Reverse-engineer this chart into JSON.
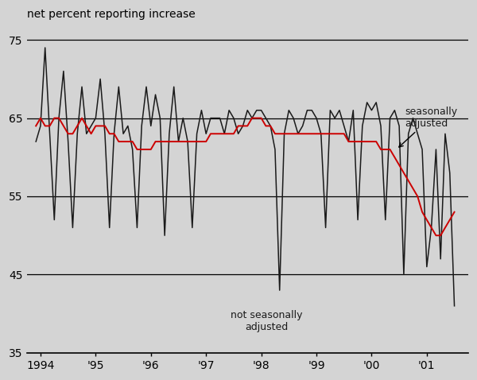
{
  "title": "net percent reporting increase",
  "ylabel_vals": [
    35,
    45,
    55,
    65,
    75
  ],
  "ylim": [
    35,
    77
  ],
  "xlim_start": 1993.75,
  "xlim_end": 2001.75,
  "background_color": "#d4d4d4",
  "hlines": [
    45,
    55,
    65,
    75
  ],
  "xtick_labels": [
    "1994",
    "'95",
    "'96",
    "'97",
    "'98",
    "'99",
    "'00",
    "'01"
  ],
  "xtick_positions": [
    1994,
    1995,
    1996,
    1997,
    1998,
    1999,
    2000,
    2001
  ],
  "sa_color": "#cc0000",
  "nsa_color": "#1a1a1a",
  "sa_annotation_text": "seasonally\nadjusted",
  "nsa_annotation_text": "not seasonally\nadjusted",
  "sa_data": {
    "t": [
      1993.917,
      1994.0,
      1994.083,
      1994.167,
      1994.25,
      1994.333,
      1994.417,
      1994.5,
      1994.583,
      1994.667,
      1994.75,
      1994.833,
      1994.917,
      1995.0,
      1995.083,
      1995.167,
      1995.25,
      1995.333,
      1995.417,
      1995.5,
      1995.583,
      1995.667,
      1995.75,
      1995.833,
      1995.917,
      1996.0,
      1996.083,
      1996.167,
      1996.25,
      1996.333,
      1996.417,
      1996.5,
      1996.583,
      1996.667,
      1996.75,
      1996.833,
      1996.917,
      1997.0,
      1997.083,
      1997.167,
      1997.25,
      1997.333,
      1997.417,
      1997.5,
      1997.583,
      1997.667,
      1997.75,
      1997.833,
      1997.917,
      1998.0,
      1998.083,
      1998.167,
      1998.25,
      1998.333,
      1998.417,
      1998.5,
      1998.583,
      1998.667,
      1998.75,
      1998.833,
      1998.917,
      1999.0,
      1999.083,
      1999.167,
      1999.25,
      1999.333,
      1999.417,
      1999.5,
      1999.583,
      1999.667,
      1999.75,
      1999.833,
      1999.917,
      2000.0,
      2000.083,
      2000.167,
      2000.25,
      2000.333,
      2000.417,
      2000.5,
      2000.583,
      2000.667,
      2000.75,
      2000.833,
      2000.917,
      2001.0,
      2001.083,
      2001.167,
      2001.25,
      2001.333,
      2001.417,
      2001.5
    ],
    "v": [
      64,
      65,
      64,
      64,
      65,
      65,
      64,
      63,
      63,
      64,
      65,
      64,
      63,
      64,
      64,
      64,
      63,
      63,
      62,
      62,
      62,
      62,
      61,
      61,
      61,
      61,
      62,
      62,
      62,
      62,
      62,
      62,
      62,
      62,
      62,
      62,
      62,
      62,
      63,
      63,
      63,
      63,
      63,
      63,
      64,
      64,
      64,
      65,
      65,
      65,
      64,
      64,
      63,
      63,
      63,
      63,
      63,
      63,
      63,
      63,
      63,
      63,
      63,
      63,
      63,
      63,
      63,
      63,
      62,
      62,
      62,
      62,
      62,
      62,
      62,
      61,
      61,
      61,
      60,
      59,
      58,
      57,
      56,
      55,
      53,
      52,
      51,
      50,
      50,
      51,
      52,
      53
    ]
  },
  "nsa_data": {
    "t": [
      1993.917,
      1994.0,
      1994.083,
      1994.167,
      1994.25,
      1994.333,
      1994.417,
      1994.5,
      1994.583,
      1994.667,
      1994.75,
      1994.833,
      1994.917,
      1995.0,
      1995.083,
      1995.167,
      1995.25,
      1995.333,
      1995.417,
      1995.5,
      1995.583,
      1995.667,
      1995.75,
      1995.833,
      1995.917,
      1996.0,
      1996.083,
      1996.167,
      1996.25,
      1996.333,
      1996.417,
      1996.5,
      1996.583,
      1996.667,
      1996.75,
      1996.833,
      1996.917,
      1997.0,
      1997.083,
      1997.167,
      1997.25,
      1997.333,
      1997.417,
      1997.5,
      1997.583,
      1997.667,
      1997.75,
      1997.833,
      1997.917,
      1998.0,
      1998.083,
      1998.167,
      1998.25,
      1998.333,
      1998.417,
      1998.5,
      1998.583,
      1998.667,
      1998.75,
      1998.833,
      1998.917,
      1999.0,
      1999.083,
      1999.167,
      1999.25,
      1999.333,
      1999.417,
      1999.5,
      1999.583,
      1999.667,
      1999.75,
      1999.833,
      1999.917,
      2000.0,
      2000.083,
      2000.167,
      2000.25,
      2000.333,
      2000.417,
      2000.5,
      2000.583,
      2000.667,
      2000.75,
      2000.833,
      2000.917,
      2001.0,
      2001.083,
      2001.167,
      2001.25,
      2001.333,
      2001.417,
      2001.5
    ],
    "v": [
      62,
      64,
      74,
      63,
      52,
      65,
      71,
      62,
      51,
      63,
      69,
      63,
      64,
      65,
      70,
      63,
      51,
      63,
      69,
      63,
      64,
      61,
      51,
      64,
      69,
      64,
      68,
      65,
      50,
      63,
      69,
      62,
      65,
      62,
      51,
      63,
      66,
      63,
      65,
      65,
      65,
      63,
      66,
      65,
      63,
      64,
      66,
      65,
      66,
      66,
      65,
      64,
      61,
      43,
      63,
      66,
      65,
      63,
      64,
      66,
      66,
      65,
      63,
      51,
      66,
      65,
      66,
      64,
      62,
      66,
      52,
      64,
      67,
      66,
      67,
      64,
      52,
      65,
      66,
      64,
      45,
      63,
      65,
      63,
      61,
      46,
      51,
      61,
      47,
      63,
      58,
      41
    ]
  }
}
